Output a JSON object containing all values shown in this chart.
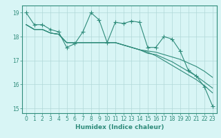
{
  "title": "",
  "xlabel": "Humidex (Indice chaleur)",
  "x_values": [
    0,
    1,
    2,
    3,
    4,
    5,
    6,
    7,
    8,
    9,
    10,
    11,
    12,
    13,
    14,
    15,
    16,
    17,
    18,
    19,
    20,
    21,
    22,
    23
  ],
  "line1_y": [
    19.0,
    18.5,
    18.5,
    18.3,
    18.2,
    17.55,
    17.7,
    18.2,
    19.0,
    18.7,
    17.75,
    18.6,
    18.55,
    18.65,
    18.6,
    17.55,
    17.55,
    18.0,
    17.9,
    17.4,
    16.6,
    16.35,
    15.9,
    15.1
  ],
  "line2_y": [
    18.5,
    18.3,
    18.3,
    18.15,
    18.1,
    17.75,
    17.75,
    17.75,
    17.75,
    17.75,
    17.75,
    17.75,
    17.65,
    17.55,
    17.45,
    17.4,
    17.35,
    17.25,
    17.15,
    17.05,
    16.9,
    16.75,
    16.55,
    16.3
  ],
  "line3_y": [
    18.5,
    18.3,
    18.3,
    18.15,
    18.1,
    17.75,
    17.75,
    17.75,
    17.75,
    17.75,
    17.75,
    17.75,
    17.65,
    17.55,
    17.45,
    17.3,
    17.25,
    17.1,
    16.95,
    16.75,
    16.55,
    16.35,
    16.1,
    15.85
  ],
  "line4_y": [
    18.5,
    18.3,
    18.3,
    18.15,
    18.1,
    17.75,
    17.75,
    17.75,
    17.75,
    17.75,
    17.75,
    17.75,
    17.65,
    17.55,
    17.45,
    17.35,
    17.2,
    17.0,
    16.8,
    16.6,
    16.4,
    16.2,
    15.95,
    15.65
  ],
  "line_color": "#2e8b7a",
  "bg_color": "#d8f5f5",
  "grid_color": "#b0d8d8",
  "ylim": [
    14.8,
    19.3
  ],
  "xlim": [
    -0.5,
    23.5
  ],
  "yticks": [
    15,
    16,
    17,
    18,
    19
  ],
  "xticks": [
    0,
    1,
    2,
    3,
    4,
    5,
    6,
    7,
    8,
    9,
    10,
    11,
    12,
    13,
    14,
    15,
    16,
    17,
    18,
    19,
    20,
    21,
    22,
    23
  ],
  "tick_fontsize": 5.5,
  "xlabel_fontsize": 6.5
}
